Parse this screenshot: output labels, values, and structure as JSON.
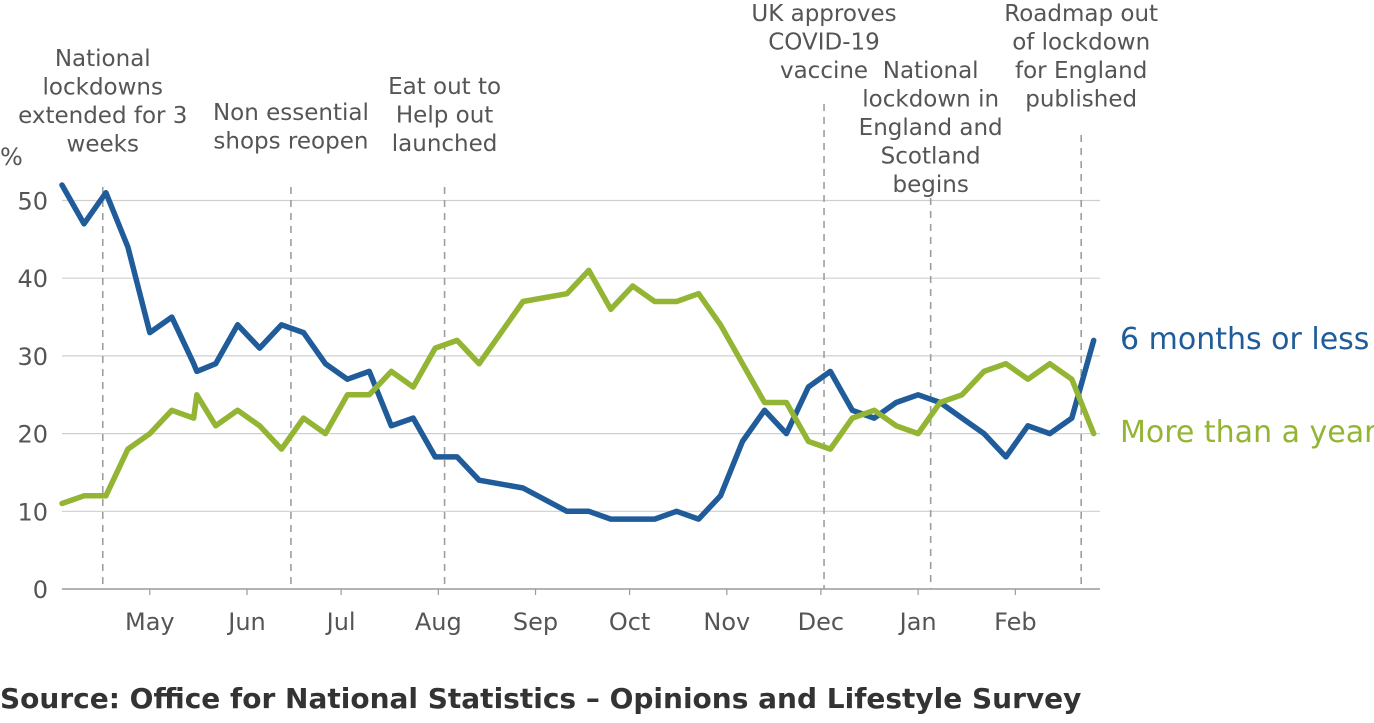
{
  "chart_data": {
    "type": "line",
    "ylabel": "%",
    "ylim": [
      0,
      53
    ],
    "yticks": [
      0,
      10,
      20,
      30,
      40,
      50
    ],
    "x_start": "2020-04-03",
    "x_end": "2021-02-28",
    "months": [
      {
        "label": "May",
        "date": "2020-05-01"
      },
      {
        "label": "Jun",
        "date": "2020-06-01"
      },
      {
        "label": "Jul",
        "date": "2020-07-01"
      },
      {
        "label": "Aug",
        "date": "2020-08-01"
      },
      {
        "label": "Sep",
        "date": "2020-09-01"
      },
      {
        "label": "Oct",
        "date": "2020-10-01"
      },
      {
        "label": "Nov",
        "date": "2020-11-01"
      },
      {
        "label": "Dec",
        "date": "2020-12-01"
      },
      {
        "label": "Jan",
        "date": "2021-01-01"
      },
      {
        "label": "Feb",
        "date": "2021-02-01"
      }
    ],
    "grid": true,
    "series": [
      {
        "name": "6 months or less",
        "color": "#1f5c99",
        "points": [
          [
            "2020-04-03",
            52
          ],
          [
            "2020-04-10",
            47
          ],
          [
            "2020-04-17",
            51
          ],
          [
            "2020-04-24",
            44
          ],
          [
            "2020-05-01",
            33
          ],
          [
            "2020-05-08",
            35
          ],
          [
            "2020-05-15",
            29
          ],
          [
            "2020-05-16",
            28
          ],
          [
            "2020-05-22",
            29
          ],
          [
            "2020-05-29",
            34
          ],
          [
            "2020-06-05",
            31
          ],
          [
            "2020-06-12",
            34
          ],
          [
            "2020-06-19",
            33
          ],
          [
            "2020-06-26",
            29
          ],
          [
            "2020-07-03",
            27
          ],
          [
            "2020-07-10",
            28
          ],
          [
            "2020-07-17",
            21
          ],
          [
            "2020-07-24",
            22
          ],
          [
            "2020-07-31",
            17
          ],
          [
            "2020-08-07",
            17
          ],
          [
            "2020-08-14",
            14
          ],
          [
            "2020-08-28",
            13
          ],
          [
            "2020-09-11",
            10
          ],
          [
            "2020-09-18",
            10
          ],
          [
            "2020-09-25",
            9
          ],
          [
            "2020-10-09",
            9
          ],
          [
            "2020-10-16",
            10
          ],
          [
            "2020-10-23",
            9
          ],
          [
            "2020-10-30",
            12
          ],
          [
            "2020-11-06",
            19
          ],
          [
            "2020-11-13",
            23
          ],
          [
            "2020-11-20",
            20
          ],
          [
            "2020-11-27",
            26
          ],
          [
            "2020-12-04",
            28
          ],
          [
            "2020-12-11",
            23
          ],
          [
            "2020-12-18",
            22
          ],
          [
            "2020-12-25",
            24
          ],
          [
            "2021-01-01",
            25
          ],
          [
            "2021-01-08",
            24
          ],
          [
            "2021-01-15",
            22
          ],
          [
            "2021-01-22",
            20
          ],
          [
            "2021-01-29",
            17
          ],
          [
            "2021-02-05",
            21
          ],
          [
            "2021-02-12",
            20
          ],
          [
            "2021-02-19",
            22
          ],
          [
            "2021-02-26",
            32
          ]
        ]
      },
      {
        "name": "More than a year",
        "color": "#93b533",
        "points": [
          [
            "2020-04-03",
            11
          ],
          [
            "2020-04-10",
            12
          ],
          [
            "2020-04-17",
            12
          ],
          [
            "2020-04-24",
            18
          ],
          [
            "2020-05-01",
            20
          ],
          [
            "2020-05-08",
            23
          ],
          [
            "2020-05-15",
            22
          ],
          [
            "2020-05-16",
            25
          ],
          [
            "2020-05-22",
            21
          ],
          [
            "2020-05-29",
            23
          ],
          [
            "2020-06-05",
            21
          ],
          [
            "2020-06-12",
            18
          ],
          [
            "2020-06-19",
            22
          ],
          [
            "2020-06-26",
            20
          ],
          [
            "2020-07-03",
            25
          ],
          [
            "2020-07-10",
            25
          ],
          [
            "2020-07-17",
            28
          ],
          [
            "2020-07-24",
            26
          ],
          [
            "2020-07-31",
            31
          ],
          [
            "2020-08-07",
            32
          ],
          [
            "2020-08-14",
            29
          ],
          [
            "2020-08-28",
            37
          ],
          [
            "2020-09-11",
            38
          ],
          [
            "2020-09-18",
            41
          ],
          [
            "2020-09-25",
            36
          ],
          [
            "2020-10-02",
            39
          ],
          [
            "2020-10-09",
            37
          ],
          [
            "2020-10-16",
            37
          ],
          [
            "2020-10-23",
            38
          ],
          [
            "2020-10-30",
            34
          ],
          [
            "2020-11-06",
            29
          ],
          [
            "2020-11-13",
            24
          ],
          [
            "2020-11-20",
            24
          ],
          [
            "2020-11-27",
            19
          ],
          [
            "2020-12-04",
            18
          ],
          [
            "2020-12-11",
            22
          ],
          [
            "2020-12-18",
            23
          ],
          [
            "2020-12-25",
            21
          ],
          [
            "2021-01-01",
            20
          ],
          [
            "2021-01-08",
            24
          ],
          [
            "2021-01-15",
            25
          ],
          [
            "2021-01-22",
            28
          ],
          [
            "2021-01-29",
            29
          ],
          [
            "2021-02-05",
            27
          ],
          [
            "2021-02-12",
            29
          ],
          [
            "2021-02-19",
            27
          ],
          [
            "2021-02-26",
            20
          ]
        ]
      }
    ],
    "annotations": [
      {
        "date": "2020-04-16",
        "text": [
          "National",
          "lockdowns",
          "extended for 3",
          "weeks"
        ]
      },
      {
        "date": "2020-06-15",
        "text": [
          "Non essential",
          "shops reopen"
        ]
      },
      {
        "date": "2020-08-03",
        "text": [
          "Eat out to",
          "Help out",
          "launched"
        ]
      },
      {
        "date": "2020-12-02",
        "text": [
          "UK approves",
          "COVID-19",
          "vaccine"
        ]
      },
      {
        "date": "2021-01-05",
        "text": [
          "National",
          "lockdown in",
          "England and",
          "Scotland",
          "begins"
        ]
      },
      {
        "date": "2021-02-22",
        "text": [
          "Roadmap out",
          "of lockdown",
          "for England",
          "published"
        ]
      }
    ]
  },
  "source_text": "Source: Office for National Statistics – Opinions and Lifestyle Survey"
}
